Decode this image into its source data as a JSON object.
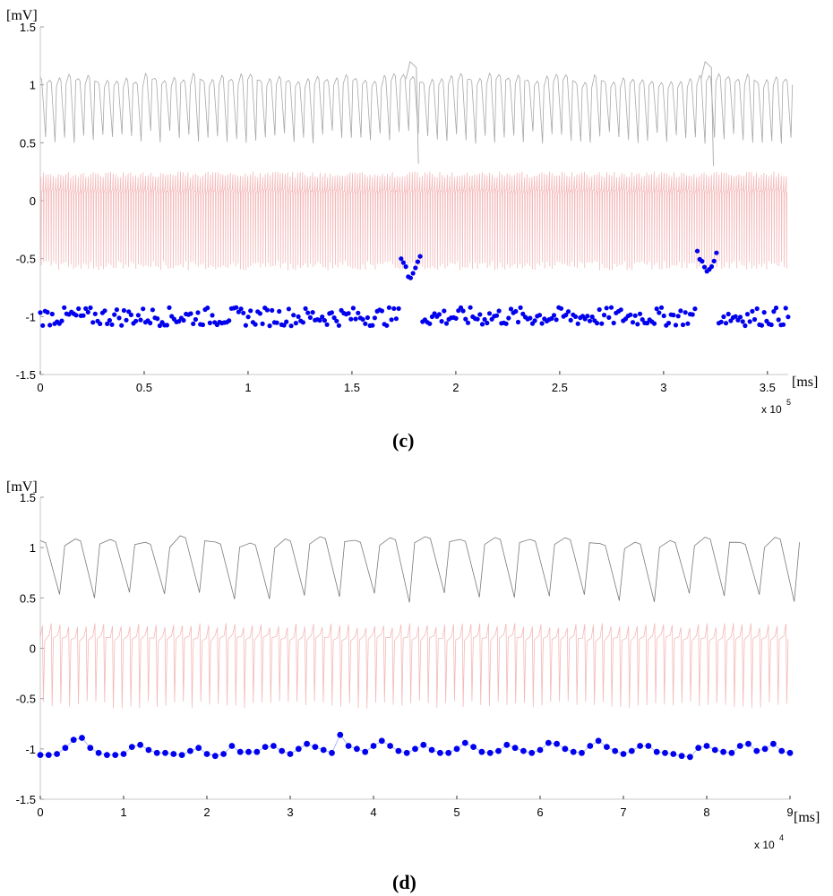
{
  "chart_data": [
    {
      "id": "c",
      "type": "line",
      "caption": "(c)",
      "ylabel": "[mV]",
      "xlabel": "[ms]",
      "x_multiplier": "x 10",
      "x_exponent": "5",
      "xlim": [
        0,
        3.6
      ],
      "ylim": [
        -1.5,
        1.5
      ],
      "xticks": [
        "0",
        "0.5",
        "1",
        "1.5",
        "2",
        "2.5",
        "3",
        "3.5"
      ],
      "yticks": [
        "1.5",
        "1",
        "0.5",
        "0",
        "-0.5",
        "-1",
        "-1.5"
      ],
      "grid": false,
      "legend": "none",
      "colors": {
        "top": "#a8a8a8",
        "middle": "#f4b8b8",
        "dots": "#0000ee"
      },
      "series": [
        {
          "type": "line",
          "role": "top",
          "pattern": "oscillation",
          "x_start": 0.0,
          "x_end": 3.6,
          "period": 0.046,
          "baseline": 1.06,
          "trough": 0.55,
          "events": [
            {
              "x": 1.78,
              "peak": 1.2,
              "trough": 0.32
            },
            {
              "x": 3.2,
              "peak": 1.2,
              "trough": 0.3
            }
          ]
        },
        {
          "type": "line",
          "role": "middle",
          "pattern": "spikes",
          "x_start": 0.0,
          "x_end": 3.6,
          "period": 0.012,
          "baseline": 0.1,
          "upper": 0.25,
          "lower": -0.6
        },
        {
          "type": "scatter",
          "role": "dots",
          "x_start": 0.0,
          "x_end": 3.6,
          "spacing": 0.0115,
          "mean": -1.0,
          "spread": 0.05,
          "events": [
            {
              "x": 1.78,
              "peak": -0.67
            },
            {
              "x": 3.21,
              "peak": -0.63
            }
          ]
        }
      ]
    },
    {
      "id": "d",
      "type": "line",
      "caption": "(d)",
      "ylabel": "[mV]",
      "xlabel": "[ms]",
      "x_multiplier": "x 10",
      "x_exponent": "4",
      "xlim": [
        0,
        9
      ],
      "ylim": [
        -1.5,
        1.5
      ],
      "xticks": [
        "0",
        "1",
        "2",
        "3",
        "4",
        "5",
        "6",
        "7",
        "8",
        "9"
      ],
      "yticks": [
        "1.5",
        "1",
        "0.5",
        "0",
        "-0.5",
        "-1",
        "-1.5"
      ],
      "grid": false,
      "legend": "none",
      "colors": {
        "top": "#7a7a7a",
        "middle": "#f4b8b8",
        "dots": "#0000ee",
        "dot_line": "#9aa8ff"
      },
      "series": [
        {
          "type": "line",
          "role": "top",
          "pattern": "oscillation",
          "x_start": 0.0,
          "x_end": 9.0,
          "period": 0.42,
          "baseline": 1.08,
          "trough": 0.5
        },
        {
          "type": "line",
          "role": "middle",
          "pattern": "spikes",
          "x_start": 0.0,
          "x_end": 9.0,
          "period": 0.105,
          "baseline": 0.12,
          "upper": 0.25,
          "lower": -0.6
        },
        {
          "type": "scatter",
          "role": "dots",
          "x": [
            0.0,
            0.1,
            0.2,
            0.3,
            0.4,
            0.5,
            0.6,
            0.7,
            0.8,
            0.9,
            1.0,
            1.1,
            1.2,
            1.3,
            1.4,
            1.5,
            1.6,
            1.7,
            1.8,
            1.9,
            2.0,
            2.1,
            2.2,
            2.3,
            2.4,
            2.5,
            2.6,
            2.7,
            2.8,
            2.9,
            3.0,
            3.1,
            3.2,
            3.3,
            3.4,
            3.5,
            3.6,
            3.7,
            3.8,
            3.9,
            4.0,
            4.1,
            4.2,
            4.3,
            4.4,
            4.5,
            4.6,
            4.7,
            4.8,
            4.9,
            5.0,
            5.1,
            5.2,
            5.3,
            5.4,
            5.5,
            5.6,
            5.7,
            5.8,
            5.9,
            6.0,
            6.1,
            6.2,
            6.3,
            6.4,
            6.5,
            6.6,
            6.7,
            6.8,
            6.9,
            7.0,
            7.1,
            7.2,
            7.3,
            7.4,
            7.5,
            7.6,
            7.7,
            7.8,
            7.9,
            8.0,
            8.1,
            8.2,
            8.3,
            8.4,
            8.5,
            8.6,
            8.7,
            8.8,
            8.9,
            9.0
          ],
          "y": [
            -1.06,
            -1.06,
            -1.05,
            -0.99,
            -0.91,
            -0.89,
            -0.99,
            -1.04,
            -1.06,
            -1.06,
            -1.05,
            -0.98,
            -0.96,
            -1.01,
            -1.04,
            -1.04,
            -1.05,
            -1.06,
            -1.02,
            -0.99,
            -1.05,
            -1.07,
            -1.05,
            -0.97,
            -1.03,
            -1.03,
            -1.03,
            -0.98,
            -0.97,
            -1.02,
            -1.05,
            -1.0,
            -0.95,
            -0.98,
            -1.01,
            -1.04,
            -0.86,
            -0.97,
            -1.0,
            -1.03,
            -0.97,
            -0.92,
            -0.97,
            -1.02,
            -1.04,
            -1.0,
            -0.96,
            -1.01,
            -1.04,
            -1.04,
            -1.0,
            -0.94,
            -0.98,
            -1.03,
            -1.04,
            -1.02,
            -0.96,
            -0.99,
            -1.02,
            -1.04,
            -1.01,
            -0.94,
            -0.95,
            -1.0,
            -1.03,
            -1.04,
            -0.97,
            -0.92,
            -0.98,
            -1.02,
            -1.05,
            -1.02,
            -0.97,
            -0.97,
            -1.03,
            -1.04,
            -1.05,
            -1.07,
            -1.08,
            -0.99,
            -0.97,
            -1.01,
            -1.03,
            -1.04,
            -0.97,
            -0.95,
            -1.02,
            -1.0,
            -0.95,
            -1.02,
            -1.04
          ]
        }
      ]
    }
  ]
}
